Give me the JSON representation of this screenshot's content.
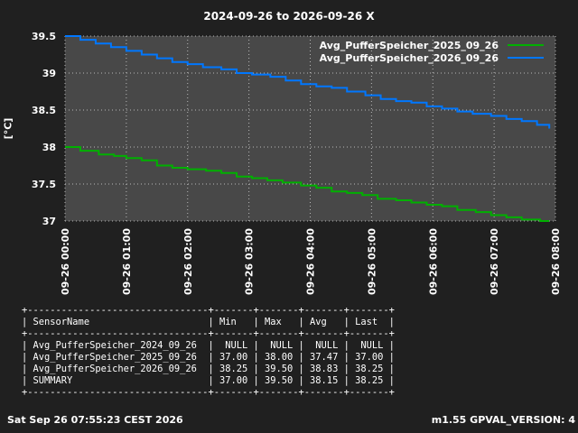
{
  "chart_data": {
    "type": "line",
    "title": "2024-09-26 to 2026-09-26 X",
    "ylabel": "[°C]",
    "xlabel": "",
    "ylim": [
      37,
      39.5
    ],
    "xlim": [
      0,
      8
    ],
    "yticks": [
      "37",
      "37.5",
      "38",
      "38.5",
      "39",
      "39.5"
    ],
    "xticks": [
      "09-26 00:00",
      "09-26 01:00",
      "09-26 02:00",
      "09-26 03:00",
      "09-26 04:00",
      "09-26 05:00",
      "09-26 06:00",
      "09-26 07:00",
      "09-26 08:00"
    ],
    "grid": true,
    "legend_position": "top-right",
    "series": [
      {
        "name": "Avg_PufferSpeicher_2025_09_26",
        "color": "#00b000",
        "points": [
          [
            0,
            38.0
          ],
          [
            0.25,
            37.95
          ],
          [
            0.55,
            37.9
          ],
          [
            0.8,
            37.88
          ],
          [
            1.0,
            37.85
          ],
          [
            1.25,
            37.82
          ],
          [
            1.5,
            37.75
          ],
          [
            1.75,
            37.72
          ],
          [
            2.0,
            37.7
          ],
          [
            2.3,
            37.68
          ],
          [
            2.55,
            37.65
          ],
          [
            2.8,
            37.6
          ],
          [
            3.05,
            37.58
          ],
          [
            3.3,
            37.55
          ],
          [
            3.55,
            37.52
          ],
          [
            3.85,
            37.48
          ],
          [
            4.1,
            37.45
          ],
          [
            4.35,
            37.4
          ],
          [
            4.6,
            37.38
          ],
          [
            4.85,
            37.35
          ],
          [
            5.1,
            37.3
          ],
          [
            5.4,
            37.28
          ],
          [
            5.65,
            37.25
          ],
          [
            5.9,
            37.22
          ],
          [
            6.15,
            37.2
          ],
          [
            6.4,
            37.15
          ],
          [
            6.7,
            37.12
          ],
          [
            6.95,
            37.08
          ],
          [
            7.2,
            37.05
          ],
          [
            7.45,
            37.02
          ],
          [
            7.75,
            37.0
          ],
          [
            7.9,
            37.0
          ]
        ]
      },
      {
        "name": "Avg_PufferSpeicher_2026_09_26",
        "color": "#0077ff",
        "points": [
          [
            0,
            39.5
          ],
          [
            0.25,
            39.45
          ],
          [
            0.5,
            39.4
          ],
          [
            0.75,
            39.35
          ],
          [
            1.0,
            39.3
          ],
          [
            1.25,
            39.25
          ],
          [
            1.5,
            39.2
          ],
          [
            1.75,
            39.15
          ],
          [
            2.0,
            39.12
          ],
          [
            2.25,
            39.08
          ],
          [
            2.55,
            39.05
          ],
          [
            2.8,
            39.0
          ],
          [
            3.05,
            38.98
          ],
          [
            3.35,
            38.95
          ],
          [
            3.6,
            38.9
          ],
          [
            3.85,
            38.85
          ],
          [
            4.1,
            38.82
          ],
          [
            4.35,
            38.8
          ],
          [
            4.6,
            38.75
          ],
          [
            4.9,
            38.7
          ],
          [
            5.15,
            38.65
          ],
          [
            5.4,
            38.62
          ],
          [
            5.65,
            38.6
          ],
          [
            5.9,
            38.55
          ],
          [
            6.15,
            38.52
          ],
          [
            6.4,
            38.48
          ],
          [
            6.65,
            38.45
          ],
          [
            6.95,
            38.42
          ],
          [
            7.2,
            38.38
          ],
          [
            7.45,
            38.35
          ],
          [
            7.7,
            38.3
          ],
          [
            7.9,
            38.25
          ]
        ]
      }
    ]
  },
  "stats_table": {
    "headers": [
      "SensorName",
      "Min",
      "Max",
      "Avg",
      "Last"
    ],
    "rows": [
      [
        "Avg_PufferSpeicher_2024_09_26",
        "NULL",
        "NULL",
        "NULL",
        "NULL"
      ],
      [
        "Avg_PufferSpeicher_2025_09_26",
        "37.00",
        "38.00",
        "37.47",
        "37.00"
      ],
      [
        "Avg_PufferSpeicher_2026_09_26",
        "38.25",
        "39.50",
        "38.83",
        "38.25"
      ],
      [
        "SUMMARY",
        "37.00",
        "39.50",
        "38.15",
        "38.25"
      ]
    ]
  },
  "footer": {
    "timestamp": "Sat Sep 26 07:55:23 CEST 2026",
    "version": "m1.55 GPVAL_VERSION: 4"
  }
}
